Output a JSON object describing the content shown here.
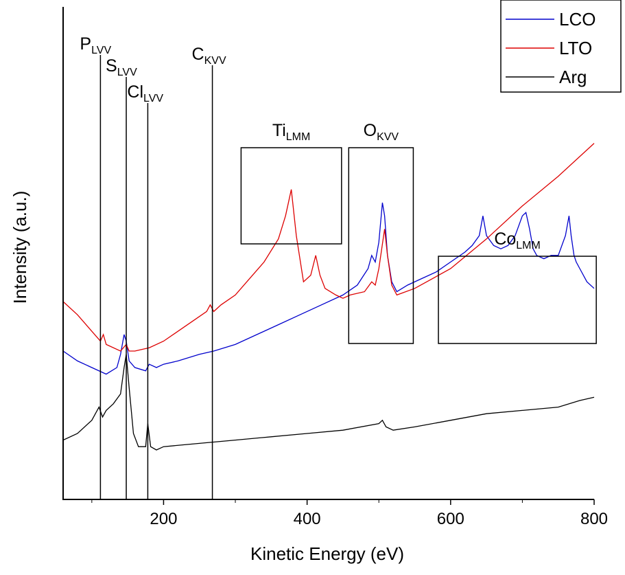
{
  "chart_data": {
    "type": "line",
    "title": "",
    "xlabel": "Kinetic Energy (eV)",
    "ylabel": "Intensity (a.u.)",
    "xlim": [
      60,
      800
    ],
    "x_ticks": [
      200,
      400,
      600,
      800
    ],
    "y_ticks_shown": false,
    "grid": false,
    "legend_position": "top-right",
    "legend": [
      "LCO",
      "LTO",
      "Arg"
    ],
    "series": [
      {
        "name": "LCO",
        "color": "#0000cc",
        "x": [
          60,
          80,
          100,
          120,
          135,
          140,
          145,
          148,
          152,
          160,
          175,
          180,
          190,
          200,
          220,
          250,
          270,
          300,
          330,
          360,
          390,
          420,
          450,
          470,
          485,
          490,
          495,
          500,
          505,
          508,
          512,
          518,
          525,
          540,
          560,
          580,
          600,
          620,
          630,
          640,
          645,
          650,
          660,
          670,
          680,
          690,
          700,
          705,
          710,
          715,
          720,
          730,
          740,
          750,
          760,
          765,
          768,
          772,
          775,
          780,
          790,
          800
        ],
        "y": [
          0.45,
          0.42,
          0.4,
          0.38,
          0.4,
          0.44,
          0.5,
          0.48,
          0.42,
          0.4,
          0.39,
          0.41,
          0.4,
          0.41,
          0.42,
          0.44,
          0.45,
          0.47,
          0.5,
          0.53,
          0.56,
          0.59,
          0.62,
          0.65,
          0.7,
          0.74,
          0.72,
          0.78,
          0.9,
          0.86,
          0.74,
          0.66,
          0.63,
          0.65,
          0.67,
          0.69,
          0.72,
          0.75,
          0.77,
          0.8,
          0.86,
          0.8,
          0.77,
          0.76,
          0.77,
          0.8,
          0.86,
          0.87,
          0.82,
          0.76,
          0.74,
          0.73,
          0.74,
          0.74,
          0.8,
          0.86,
          0.8,
          0.74,
          0.72,
          0.7,
          0.66,
          0.64
        ]
      },
      {
        "name": "LTO",
        "color": "#dd0000",
        "x": [
          60,
          80,
          100,
          112,
          116,
          120,
          140,
          148,
          152,
          160,
          180,
          200,
          220,
          240,
          260,
          265,
          270,
          280,
          300,
          320,
          340,
          360,
          370,
          378,
          385,
          395,
          405,
          412,
          418,
          425,
          440,
          450,
          460,
          480,
          490,
          495,
          500,
          508,
          512,
          518,
          525,
          550,
          600,
          650,
          700,
          750,
          800
        ],
        "y": [
          0.6,
          0.56,
          0.51,
          0.48,
          0.5,
          0.47,
          0.45,
          0.47,
          0.45,
          0.45,
          0.46,
          0.48,
          0.51,
          0.54,
          0.57,
          0.59,
          0.57,
          0.59,
          0.62,
          0.67,
          0.72,
          0.79,
          0.86,
          0.94,
          0.8,
          0.66,
          0.68,
          0.74,
          0.68,
          0.64,
          0.62,
          0.61,
          0.62,
          0.63,
          0.66,
          0.65,
          0.7,
          0.82,
          0.74,
          0.65,
          0.62,
          0.64,
          0.7,
          0.79,
          0.89,
          0.98,
          1.08
        ]
      },
      {
        "name": "Arg",
        "color": "#000000",
        "x": [
          60,
          80,
          100,
          110,
          115,
          120,
          130,
          140,
          145,
          148,
          152,
          158,
          165,
          175,
          178,
          182,
          190,
          200,
          250,
          300,
          350,
          400,
          450,
          500,
          505,
          510,
          520,
          550,
          600,
          650,
          700,
          750,
          780,
          800
        ],
        "y": [
          0.18,
          0.2,
          0.24,
          0.28,
          0.25,
          0.27,
          0.29,
          0.32,
          0.4,
          0.44,
          0.34,
          0.2,
          0.16,
          0.16,
          0.23,
          0.16,
          0.15,
          0.16,
          0.17,
          0.18,
          0.19,
          0.2,
          0.21,
          0.23,
          0.24,
          0.22,
          0.21,
          0.22,
          0.24,
          0.26,
          0.27,
          0.28,
          0.3,
          0.31
        ]
      }
    ],
    "vlines": [
      {
        "x": 112,
        "label": "P",
        "sub": "LVV"
      },
      {
        "x": 148,
        "label": "S",
        "sub": "LVV"
      },
      {
        "x": 178,
        "label": "Cl",
        "sub": "LVV"
      },
      {
        "x": 268,
        "label": "C",
        "sub": "KVV"
      }
    ],
    "boxes": [
      {
        "x0": 308,
        "x1": 448,
        "label": "Ti",
        "sub": "LMM"
      },
      {
        "x0": 458,
        "x1": 548,
        "label": "O",
        "sub": "KVV"
      },
      {
        "x0": 583,
        "x1": 803,
        "label": "Co",
        "sub": "LMM"
      }
    ]
  }
}
